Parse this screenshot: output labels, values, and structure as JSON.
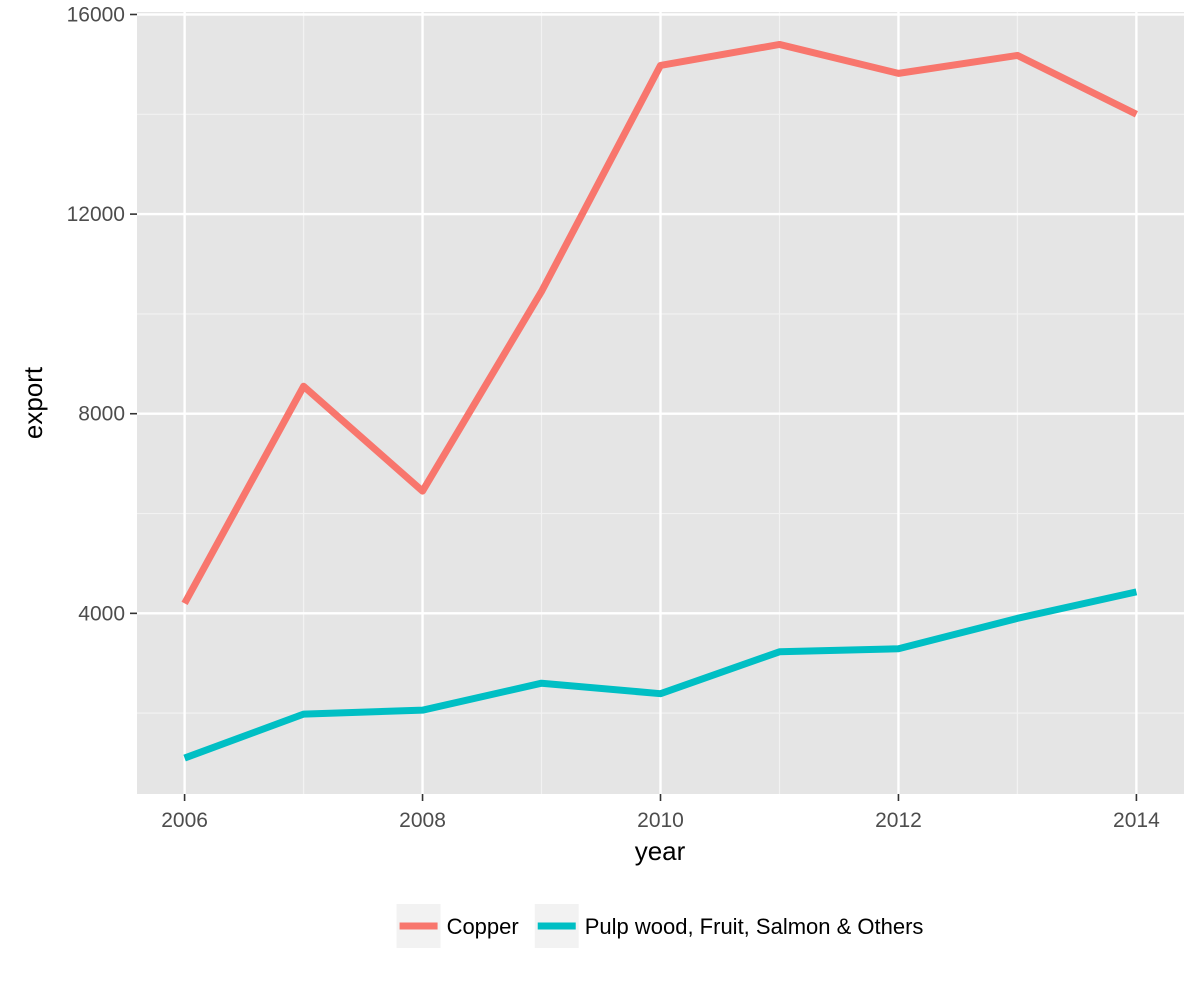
{
  "chart_data": {
    "type": "line",
    "title": "",
    "xlabel": "year",
    "ylabel": "export",
    "xlim": [
      2005.6,
      2014.4
    ],
    "ylim": [
      380,
      16050
    ],
    "x_ticks": [
      2006,
      2008,
      2010,
      2012,
      2014
    ],
    "y_ticks": [
      4000,
      8000,
      12000,
      16000
    ],
    "x_tick_labels": [
      "2006",
      "2008",
      "2010",
      "2012",
      "2014"
    ],
    "y_tick_labels": [
      "4000",
      "8000",
      "12000",
      "16000"
    ],
    "grid": true,
    "legend_position": "bottom",
    "background_color": "#e5e5e5",
    "x": [
      2006,
      2007,
      2008,
      2009,
      2010,
      2011,
      2012,
      2013,
      2014
    ],
    "series": [
      {
        "name": "Copper",
        "color": "#f8766d",
        "values": [
          4200,
          8550,
          6450,
          10450,
          14980,
          15400,
          14820,
          15180,
          14000
        ]
      },
      {
        "name": "Pulp wood, Fruit, Salmon & Others",
        "color": "#00bfc4",
        "values": [
          1100,
          1980,
          2060,
          2600,
          2390,
          3230,
          3290,
          3900,
          4430
        ]
      }
    ]
  }
}
